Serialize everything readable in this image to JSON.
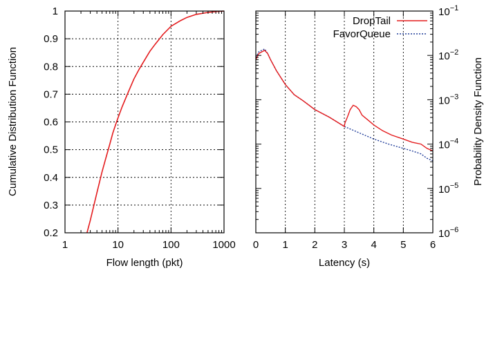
{
  "chart_data": [
    {
      "type": "line",
      "xlabel": "Flow length (pkt)",
      "ylabel": "Cumulative Distribution Function",
      "xscale": "log",
      "xlim": [
        1,
        1000
      ],
      "ylim": [
        0.2,
        1.0
      ],
      "xticks": [
        "1",
        "10",
        "100",
        "1000"
      ],
      "yticks": [
        "0.2",
        "0.3",
        "0.4",
        "0.5",
        "0.6",
        "0.7",
        "0.8",
        "0.9",
        "1"
      ],
      "grid": true,
      "series": [
        {
          "color": "#e41a1c",
          "x": [
            2.6,
            3,
            4,
            5,
            6,
            7,
            8,
            9,
            10,
            12,
            15,
            20,
            25,
            30,
            40,
            50,
            70,
            100,
            150,
            200,
            300,
            500,
            700,
            1000
          ],
          "y": [
            0.2,
            0.245,
            0.345,
            0.42,
            0.475,
            0.52,
            0.56,
            0.59,
            0.615,
            0.655,
            0.7,
            0.755,
            0.79,
            0.815,
            0.855,
            0.88,
            0.915,
            0.945,
            0.965,
            0.977,
            0.988,
            0.995,
            0.998,
            1.0
          ]
        }
      ]
    },
    {
      "type": "line",
      "xlabel": "Latency (s)",
      "ylabel": "Probability Density Function",
      "yscale": "log",
      "xlim": [
        0,
        6
      ],
      "ylim": [
        1e-06,
        0.1
      ],
      "xticks": [
        "0",
        "1",
        "2",
        "3",
        "4",
        "5",
        "6"
      ],
      "yticks_base": "10",
      "yticks_exp": [
        "-6",
        "-5",
        "-4",
        "-3",
        "-2",
        "-1"
      ],
      "grid": "x-only",
      "legend": "top-right",
      "series": [
        {
          "name": "DropTail",
          "color": "#e41a1c",
          "style": "solid",
          "x": [
            0,
            0.1,
            0.2,
            0.3,
            0.4,
            0.5,
            0.7,
            1.0,
            1.3,
            1.6,
            2.0,
            2.5,
            3.0,
            3.02,
            3.1,
            3.2,
            3.3,
            3.4,
            3.5,
            3.6,
            3.8,
            4.0,
            4.3,
            4.6,
            5.0,
            5.3,
            5.6,
            5.8,
            6.0
          ],
          "y": [
            0.008,
            0.011,
            0.012,
            0.013,
            0.011,
            0.008,
            0.0045,
            0.0022,
            0.0013,
            0.00095,
            0.0006,
            0.0004,
            0.00025,
            0.0003,
            0.0004,
            0.0006,
            0.00075,
            0.0007,
            0.0006,
            0.00045,
            0.00035,
            0.00027,
            0.0002,
            0.00016,
            0.00013,
            0.00011,
            0.0001,
            8e-05,
            7e-05
          ]
        },
        {
          "name": "FavorQueue",
          "color": "#1f3c99",
          "style": "dotted",
          "x": [
            0,
            0.1,
            0.2,
            0.3,
            0.4,
            0.5,
            0.7,
            1.0,
            1.3,
            1.6,
            2.0,
            2.5,
            3.0,
            3.5,
            4.0,
            4.5,
            5.0,
            5.3,
            5.6,
            5.8,
            6.0
          ],
          "y": [
            0.009,
            0.012,
            0.013,
            0.014,
            0.011,
            0.008,
            0.0045,
            0.0022,
            0.0013,
            0.00095,
            0.0006,
            0.0004,
            0.00025,
            0.00018,
            0.00013,
            0.0001,
            8e-05,
            7e-05,
            6e-05,
            4.8e-05,
            4.2e-05
          ]
        }
      ]
    }
  ]
}
